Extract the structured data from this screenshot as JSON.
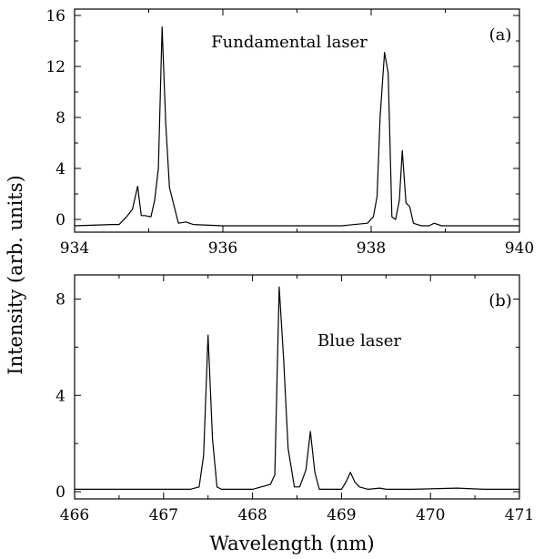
{
  "chart_data": [
    {
      "type": "line",
      "panel_label": "(a)",
      "annotation": "Fundamental laser",
      "xlabel": "",
      "ylabel": "Intensity (arb. units)",
      "xlim": [
        934,
        940
      ],
      "ylim": [
        -1,
        16.5
      ],
      "xticks": [
        934,
        936,
        938,
        940
      ],
      "yticks": [
        0,
        4,
        8,
        12,
        16
      ],
      "x": [
        934.0,
        934.5,
        934.6,
        934.7,
        934.78,
        934.85,
        934.9,
        934.95,
        935.03,
        935.08,
        935.13,
        935.18,
        935.23,
        935.28,
        935.4,
        935.5,
        935.6,
        936.0,
        937.0,
        937.6,
        937.95,
        938.03,
        938.08,
        938.12,
        938.18,
        938.23,
        938.28,
        938.33,
        938.38,
        938.42,
        938.47,
        938.52,
        938.57,
        938.62,
        938.68,
        938.78,
        938.85,
        938.95,
        940.0
      ],
      "y": [
        -0.5,
        -0.4,
        -0.4,
        0.2,
        0.8,
        2.6,
        0.3,
        0.3,
        0.2,
        1.5,
        4.0,
        15.1,
        7.5,
        2.5,
        -0.3,
        -0.2,
        -0.4,
        -0.5,
        -0.5,
        -0.5,
        -0.3,
        0.2,
        1.8,
        8.0,
        13.1,
        11.5,
        0.2,
        0.0,
        1.5,
        5.4,
        1.3,
        1.0,
        -0.3,
        -0.4,
        -0.5,
        -0.5,
        -0.3,
        -0.5,
        -0.5
      ]
    },
    {
      "type": "line",
      "panel_label": "(b)",
      "annotation": "Blue laser",
      "xlabel": "Wavelength (nm)",
      "ylabel": "",
      "xlim": [
        466,
        471
      ],
      "ylim": [
        -0.3,
        9.0
      ],
      "xticks": [
        466,
        467,
        468,
        469,
        470,
        471
      ],
      "yticks": [
        0,
        4,
        8
      ],
      "x": [
        466.0,
        467.0,
        467.3,
        467.4,
        467.45,
        467.5,
        467.55,
        467.6,
        467.65,
        467.75,
        468.0,
        468.2,
        468.25,
        468.3,
        468.35,
        468.4,
        468.47,
        468.53,
        468.6,
        468.65,
        468.7,
        468.75,
        468.85,
        469.0,
        469.05,
        469.1,
        469.15,
        469.2,
        469.3,
        469.43,
        469.5,
        469.8,
        470.3,
        470.6,
        471.0
      ],
      "y": [
        0.1,
        0.1,
        0.1,
        0.2,
        1.5,
        6.5,
        2.2,
        0.2,
        0.1,
        0.1,
        0.1,
        0.3,
        0.7,
        8.5,
        5.5,
        1.8,
        0.2,
        0.2,
        0.9,
        2.5,
        0.8,
        0.1,
        0.1,
        0.1,
        0.4,
        0.8,
        0.4,
        0.2,
        0.1,
        0.15,
        0.1,
        0.1,
        0.15,
        0.1,
        0.1
      ]
    }
  ]
}
